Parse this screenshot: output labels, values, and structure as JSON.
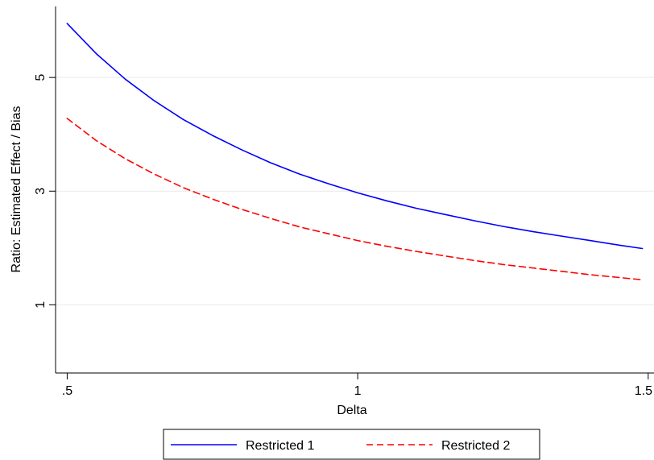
{
  "chart_data": {
    "type": "line",
    "title": "",
    "xlabel": "Delta",
    "ylabel": "Ratio: Estimated Effect / Bias",
    "xlim": [
      0.48,
      1.51
    ],
    "ylim": [
      -0.2,
      6.25
    ],
    "x_ticks": [
      {
        "value": 0.5,
        "label": ".5"
      },
      {
        "value": 1.0,
        "label": "1"
      },
      {
        "value": 1.5,
        "label": "1.5"
      }
    ],
    "y_ticks": [
      {
        "value": 1,
        "label": "1"
      },
      {
        "value": 3,
        "label": "3"
      },
      {
        "value": 5,
        "label": "5"
      }
    ],
    "grid": "horizontal",
    "legend": "bottom",
    "x": [
      0.5,
      0.55,
      0.6,
      0.65,
      0.7,
      0.75,
      0.8,
      0.85,
      0.9,
      0.95,
      1.0,
      1.05,
      1.1,
      1.15,
      1.2,
      1.25,
      1.3,
      1.35,
      1.4,
      1.45,
      1.49
    ],
    "series": [
      {
        "name": "Restricted 1",
        "color": "#0000ff",
        "dash": "solid",
        "values": [
          5.95,
          5.42,
          4.97,
          4.59,
          4.26,
          3.98,
          3.73,
          3.5,
          3.3,
          3.13,
          2.97,
          2.83,
          2.7,
          2.59,
          2.48,
          2.38,
          2.29,
          2.21,
          2.13,
          2.05,
          1.99
        ]
      },
      {
        "name": "Restricted 2",
        "color": "#ff0000",
        "dash": "dashed",
        "values": [
          4.28,
          3.89,
          3.57,
          3.3,
          3.06,
          2.86,
          2.68,
          2.52,
          2.37,
          2.25,
          2.13,
          2.03,
          1.94,
          1.86,
          1.78,
          1.71,
          1.65,
          1.59,
          1.53,
          1.48,
          1.44
        ]
      }
    ]
  }
}
